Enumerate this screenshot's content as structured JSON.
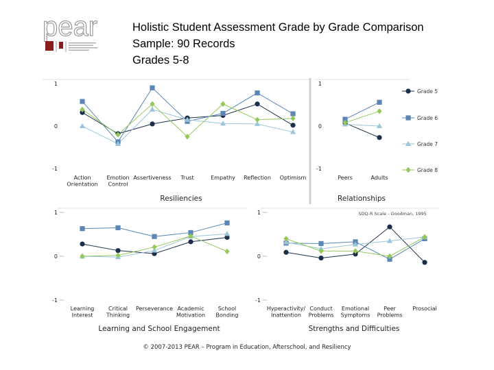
{
  "logo": {
    "text": "pear"
  },
  "header": {
    "title": "Holistic Student Assessment Grade by Grade Comparison",
    "sample": "Sample: 90 Records",
    "grades": "Grades 5-8"
  },
  "footer": "© 2007-2013 PEAR – Program in Education, Afterschool, and Resiliency",
  "colors": {
    "grade5": "#1b2f4a",
    "grade6": "#5b86b5",
    "grade7": "#9cc5dc",
    "grade8": "#94c95a"
  },
  "chart_data": [
    {
      "type": "line",
      "panel_title": "Resiliencies",
      "categories": [
        "Action Orientation",
        "Emotion Control",
        "Assertiveness",
        "Trust",
        "Empathy",
        "Reflection",
        "Optimism"
      ],
      "ylim": [
        -1,
        1
      ],
      "yticks": [
        "1",
        "0",
        "-1"
      ],
      "series": [
        {
          "name": "Grade 5",
          "marker": "circle",
          "values": [
            0.32,
            -0.18,
            0.05,
            0.19,
            0.25,
            0.52,
            0.02
          ]
        },
        {
          "name": "Grade 6",
          "marker": "square",
          "values": [
            0.58,
            -0.37,
            0.9,
            0.11,
            0.3,
            0.78,
            0.29
          ]
        },
        {
          "name": "Grade 7",
          "marker": "triangle",
          "values": [
            0.0,
            -0.42,
            0.39,
            0.15,
            0.06,
            0.05,
            -0.14
          ]
        },
        {
          "name": "Grade 8",
          "marker": "diamond",
          "values": [
            0.39,
            -0.2,
            0.52,
            -0.25,
            0.52,
            0.15,
            0.18
          ]
        }
      ]
    },
    {
      "type": "line",
      "panel_title": "Relationships",
      "categories": [
        "Peers",
        "Adults"
      ],
      "ylim": [
        -1,
        1
      ],
      "yticks": [
        "1",
        "0",
        "-1"
      ],
      "series": [
        {
          "name": "Grade 5",
          "marker": "circle",
          "values": [
            0.07,
            -0.27
          ]
        },
        {
          "name": "Grade 6",
          "marker": "square",
          "values": [
            0.16,
            0.56
          ]
        },
        {
          "name": "Grade 7",
          "marker": "triangle",
          "values": [
            0.04,
            0.0
          ]
        },
        {
          "name": "Grade 8",
          "marker": "diamond",
          "values": [
            0.08,
            0.35
          ]
        }
      ]
    },
    {
      "type": "line",
      "panel_title": "Learning and School Engagement",
      "categories": [
        "Learning Interest",
        "Critical Thinking",
        "Perseverance",
        "Academic Motivation",
        "School Bonding"
      ],
      "ylim": [
        -1,
        1
      ],
      "yticks": [
        "1",
        "0",
        "-1"
      ],
      "series": [
        {
          "name": "Grade 5",
          "marker": "circle",
          "values": [
            0.28,
            0.13,
            0.06,
            0.33,
            0.43
          ]
        },
        {
          "name": "Grade 6",
          "marker": "square",
          "values": [
            0.63,
            0.65,
            0.45,
            0.54,
            0.76
          ]
        },
        {
          "name": "Grade 7",
          "marker": "triangle",
          "values": [
            0.0,
            -0.02,
            0.13,
            0.45,
            0.51
          ]
        },
        {
          "name": "Grade 8",
          "marker": "diamond",
          "values": [
            0.0,
            0.02,
            0.21,
            0.46,
            0.11
          ]
        }
      ]
    },
    {
      "type": "line",
      "panel_title": "Strengths and Difficulties",
      "note": "SDQ-R Scale - Goodman, 1995",
      "categories": [
        "Hyperactivity/ Inattention",
        "Conduct Problems",
        "Emotional Symptoms",
        "Peer Problems",
        "Prosocial"
      ],
      "ylim": [
        -1,
        1
      ],
      "yticks": [
        "1",
        "0",
        "-1"
      ],
      "series": [
        {
          "name": "Grade 5",
          "marker": "circle",
          "values": [
            0.09,
            -0.04,
            0.05,
            0.67,
            -0.14
          ]
        },
        {
          "name": "Grade 6",
          "marker": "square",
          "values": [
            0.3,
            0.29,
            0.33,
            -0.07,
            0.4
          ]
        },
        {
          "name": "Grade 7",
          "marker": "triangle",
          "values": [
            0.32,
            0.17,
            0.27,
            0.35,
            0.44
          ]
        },
        {
          "name": "Grade 8",
          "marker": "diamond",
          "values": [
            0.4,
            0.12,
            0.12,
            0.0,
            0.44
          ]
        }
      ]
    }
  ]
}
